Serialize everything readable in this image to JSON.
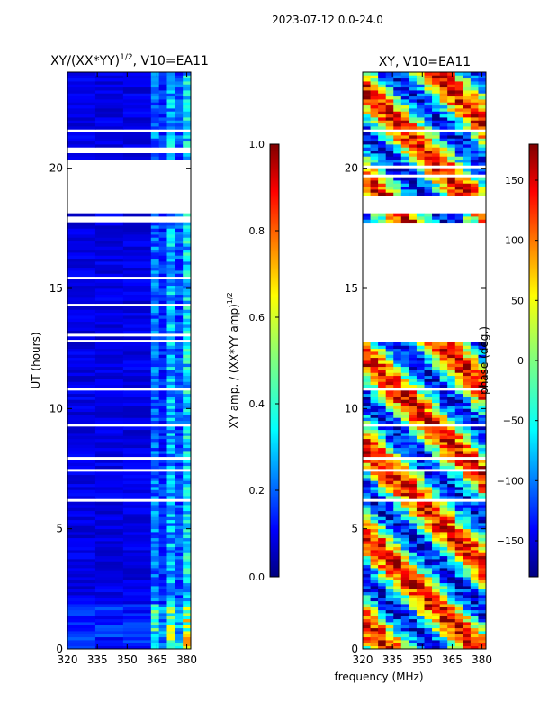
{
  "suptitle": "2023-07-12 0.0-24.0",
  "shared_xlabel": "frequency (MHz)",
  "colors": {
    "background": "#ffffff",
    "axis": "#000000",
    "jet": [
      "#00007f",
      "#0000ff",
      "#007fff",
      "#00ffff",
      "#7fff7f",
      "#ffff00",
      "#ff7f00",
      "#ff0000",
      "#7f0000"
    ]
  },
  "chart_data": [
    {
      "type": "heatmap",
      "name": "amplitude-panel",
      "title": "XY/(XX*YY)",
      "title_sup": "1/2",
      "title_suffix": ", V10=EA11",
      "ylabel": "UT (hours)",
      "xlabel": "",
      "xlim": [
        320,
        382
      ],
      "ylim": [
        0,
        24
      ],
      "xticks": [
        320,
        335,
        350,
        365,
        380
      ],
      "yticks": [
        0,
        5,
        10,
        15,
        20
      ],
      "colorbar": {
        "label": "XY amp. / (XX*YY amp)",
        "label_sup": "1/2",
        "range": [
          0.0,
          1.0
        ],
        "ticks": [
          "0.0",
          "0.2",
          "0.4",
          "0.6",
          "0.8",
          "1.0"
        ],
        "tick_values": [
          0.0,
          0.2,
          0.4,
          0.6,
          0.8,
          1.0
        ]
      },
      "data_gaps_ut_hours": [
        [
          17.7,
          17.9
        ],
        [
          18.1,
          20.25
        ],
        [
          20.6,
          20.75
        ]
      ],
      "description": "normalized cross-correlation amplitude vs frequency and UT; mostly near 0, elevated values near 362-380 MHz"
    },
    {
      "type": "heatmap",
      "name": "phase-panel",
      "title": "XY, V10=EA11",
      "ylabel": "",
      "xlabel": "",
      "xlim": [
        320,
        382
      ],
      "ylim": [
        0,
        24
      ],
      "xticks": [
        320,
        335,
        350,
        365,
        380
      ],
      "yticks": [
        0,
        5,
        10,
        15,
        20
      ],
      "colorbar": {
        "label": "phase (deg.)",
        "range": [
          -180,
          180
        ],
        "ticks": [
          "150",
          "100",
          "50",
          "0",
          "−50",
          "−100",
          "−150"
        ],
        "tick_values": [
          150,
          100,
          50,
          0,
          -50,
          -100,
          -150
        ]
      },
      "data_gaps_ut_hours": [
        [
          12.8,
          17.7
        ],
        [
          18.1,
          18.85
        ]
      ],
      "description": "cross-correlation phase vs frequency and UT spanning -180 to 180 degrees"
    }
  ]
}
